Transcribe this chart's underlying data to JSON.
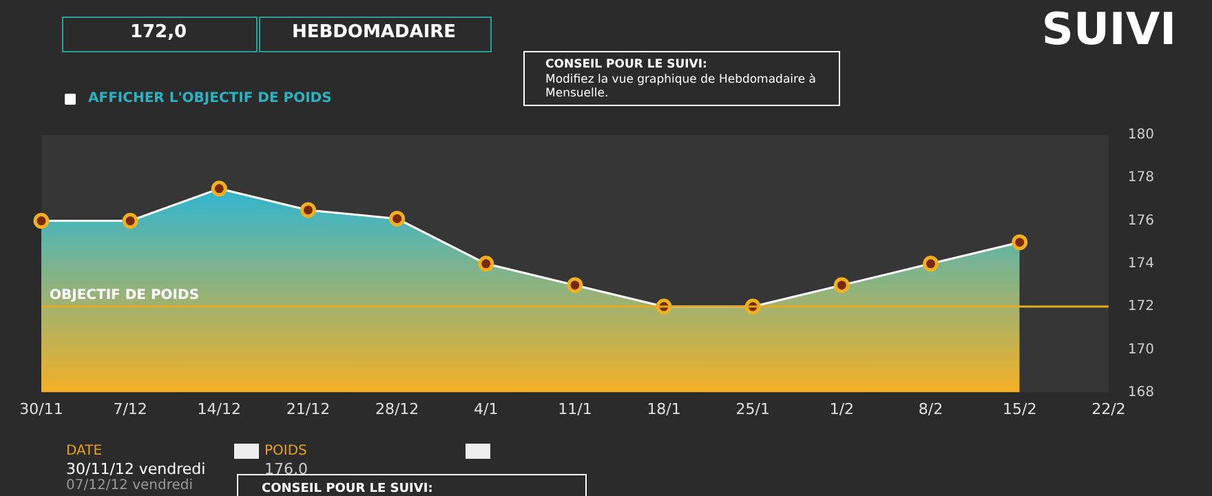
{
  "chart_data": {
    "type": "area",
    "title": "SUIVI",
    "categories": [
      "30/11",
      "7/12",
      "14/12",
      "21/12",
      "28/12",
      "4/1",
      "11/1",
      "18/1",
      "25/1",
      "1/2",
      "8/2",
      "15/2",
      "22/2"
    ],
    "series": [
      {
        "color": "#3ab5c8",
        "values": [
          176,
          176,
          177.5,
          176.5,
          176.1,
          174,
          173,
          172,
          172,
          173,
          174,
          175,
          null
        ]
      }
    ],
    "ylim": [
      168,
      180
    ],
    "yticks": [
      168,
      170,
      172,
      174,
      176,
      178,
      180
    ],
    "ref_lines": [
      {
        "axis": "y",
        "value": 172,
        "label": "OBJECTIF DE POIDS",
        "color": "#e8a820"
      }
    ],
    "grid": false,
    "legend": false,
    "marker": "circle",
    "annotations": [
      "172,0",
      "HEBDOMADAIRE",
      "CONSEIL POUR LE SUIVI:",
      "Modifiez la vue graphique de Hebdomadaire à Mensuelle.",
      "AFFICHER L'OBJECTIF DE POIDS",
      "DATE",
      "POIDS",
      "30/11/12 vendredi",
      "176,0",
      "07/12/12 vendredi",
      "CONSEIL POUR LE SUIVI:"
    ]
  }
}
